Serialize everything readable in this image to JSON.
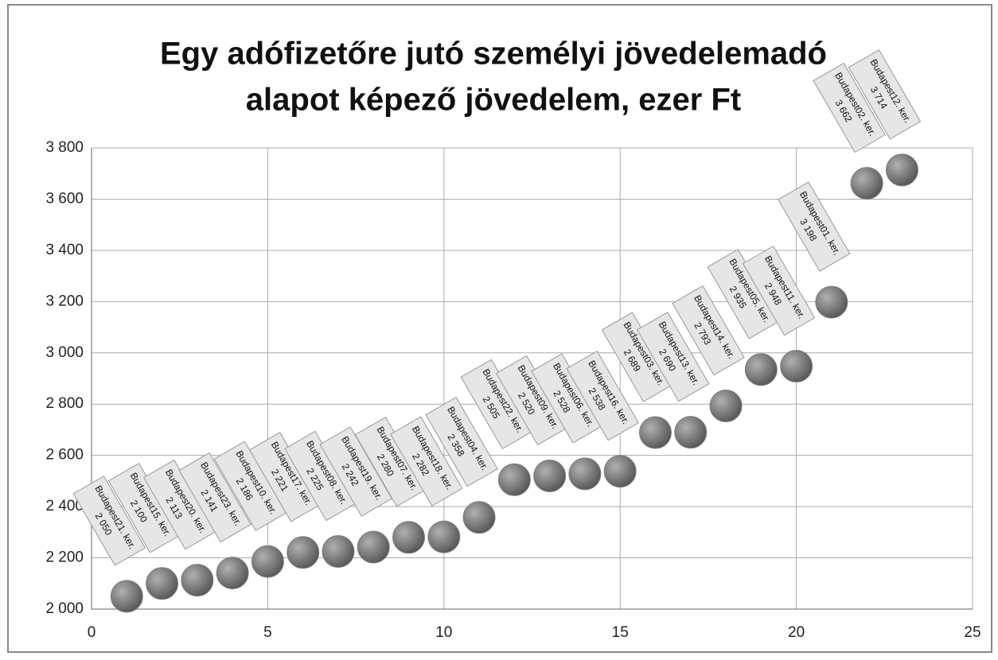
{
  "chart_data": {
    "type": "scatter",
    "title": [
      "Egy adófizetőre jutó személyi jövedelemadó",
      "alapot képező jövedelem, ezer Ft"
    ],
    "x": [
      1,
      2,
      3,
      4,
      5,
      6,
      7,
      8,
      9,
      10,
      11,
      12,
      13,
      14,
      15,
      16,
      17,
      18,
      19,
      20,
      21,
      22,
      23
    ],
    "values": [
      2050,
      2100,
      2113,
      2141,
      2186,
      2221,
      2225,
      2242,
      2280,
      2282,
      2358,
      2505,
      2520,
      2528,
      2538,
      2689,
      2690,
      2793,
      2935,
      2948,
      3198,
      3662,
      3714
    ],
    "point_labels": [
      "Budapest21. ker.",
      "Budapest15. ker.",
      "Budapest20. ker.",
      "Budapest23. ker.",
      "Budapest10. ker.",
      "Budapest17. ker.",
      "Budapest08. ker.",
      "Budapest19. ker.",
      "Budapest07. ker.",
      "Budapest18. ker.",
      "Budapest04. ker.",
      "Budapest22. ker.",
      "Budapest09. ker.",
      "Budapest06. ker.",
      "Budapest16. ker.",
      "Budapest03. ker.",
      "Budapest13. ker.",
      "Budapest14. ker.",
      "Budapest05. ker.",
      "Budapest11. ker.",
      "Budapest01. ker.",
      "Budapest02. ker.",
      "Budapest12. ker."
    ],
    "value_labels": [
      "2 050",
      "2 100",
      "2 113",
      "2 141",
      "2 186",
      "2 221",
      "2 225",
      "2 242",
      "2 280",
      "2 282",
      "2 358",
      "2 505",
      "2 520",
      "2 528",
      "2 538",
      "2 689",
      "2 690",
      "2 793",
      "2 935",
      "2 948",
      "3 198",
      "3 662",
      "3 714"
    ],
    "color": "#7f7f7f",
    "xlim": [
      0,
      25
    ],
    "xticks": [
      0,
      5,
      10,
      15,
      20,
      25
    ],
    "ylim": [
      2000,
      3800
    ],
    "yticks": [
      {
        "value": 2000,
        "label": "2 000"
      },
      {
        "value": 2200,
        "label": "2 200"
      },
      {
        "value": 2400,
        "label": "2 400"
      },
      {
        "value": 2600,
        "label": "2 600"
      },
      {
        "value": 2800,
        "label": "2 800"
      },
      {
        "value": 3000,
        "label": "3 000"
      },
      {
        "value": 3200,
        "label": "3 200"
      },
      {
        "value": 3400,
        "label": "3 400"
      },
      {
        "value": 3600,
        "label": "3 600"
      },
      {
        "value": 3800,
        "label": "3 800"
      }
    ],
    "grid": true
  }
}
